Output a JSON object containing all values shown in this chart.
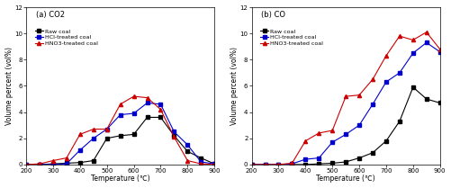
{
  "co2": {
    "title": "(a) CO2",
    "raw_coal": {
      "x": [
        200,
        250,
        300,
        350,
        400,
        450,
        500,
        550,
        600,
        650,
        700,
        750,
        800,
        850,
        900
      ],
      "y": [
        0.0,
        0.0,
        0.05,
        0.1,
        0.15,
        0.3,
        2.0,
        2.2,
        2.3,
        3.6,
        3.6,
        2.2,
        1.0,
        0.5,
        0.05
      ]
    },
    "hcl_coal": {
      "x": [
        200,
        250,
        300,
        350,
        400,
        450,
        500,
        550,
        600,
        650,
        700,
        750,
        800,
        850,
        900
      ],
      "y": [
        0.0,
        0.0,
        0.0,
        0.05,
        1.1,
        2.0,
        2.7,
        3.8,
        3.9,
        4.7,
        4.6,
        2.5,
        1.5,
        0.2,
        0.05
      ]
    },
    "hno3_coal": {
      "x": [
        200,
        250,
        300,
        350,
        400,
        450,
        500,
        550,
        600,
        650,
        700,
        750,
        800,
        850,
        900
      ],
      "y": [
        0.0,
        0.05,
        0.3,
        0.5,
        2.3,
        2.7,
        2.7,
        4.6,
        5.2,
        5.1,
        4.2,
        2.1,
        0.3,
        0.05,
        0.0
      ]
    }
  },
  "co": {
    "title": "(b) CO",
    "raw_coal": {
      "x": [
        200,
        250,
        300,
        350,
        400,
        450,
        500,
        550,
        600,
        650,
        700,
        750,
        800,
        850,
        900
      ],
      "y": [
        0.0,
        0.0,
        0.0,
        0.0,
        0.0,
        0.05,
        0.1,
        0.2,
        0.5,
        0.9,
        1.8,
        3.3,
        5.9,
        5.0,
        4.7
      ]
    },
    "hcl_coal": {
      "x": [
        200,
        250,
        300,
        350,
        400,
        450,
        500,
        550,
        600,
        650,
        700,
        750,
        800,
        850,
        900
      ],
      "y": [
        0.0,
        0.0,
        0.0,
        0.05,
        0.4,
        0.5,
        1.7,
        2.3,
        3.0,
        4.6,
        6.3,
        7.0,
        8.5,
        9.3,
        8.6
      ]
    },
    "hno3_coal": {
      "x": [
        200,
        250,
        300,
        350,
        400,
        450,
        500,
        550,
        600,
        650,
        700,
        750,
        800,
        850,
        900
      ],
      "y": [
        0.0,
        0.0,
        0.0,
        0.1,
        1.8,
        2.4,
        2.6,
        5.2,
        5.3,
        6.5,
        8.3,
        9.8,
        9.5,
        10.1,
        8.8
      ]
    }
  },
  "ylabel": "Volume percent (vol%)",
  "xlabel": "Temperature (℃)",
  "ylim": [
    0,
    12
  ],
  "xlim": [
    200,
    900
  ],
  "yticks": [
    0,
    2,
    4,
    6,
    8,
    10,
    12
  ],
  "xticks": [
    200,
    300,
    400,
    500,
    600,
    700,
    800,
    900
  ],
  "colors": {
    "raw": "#000000",
    "hcl": "#0000cc",
    "hno3": "#cc0000"
  },
  "legend_labels": [
    "Raw coal",
    "HCl-treated coal",
    "HNO3-treated coal"
  ],
  "bg_color": "#ffffff"
}
